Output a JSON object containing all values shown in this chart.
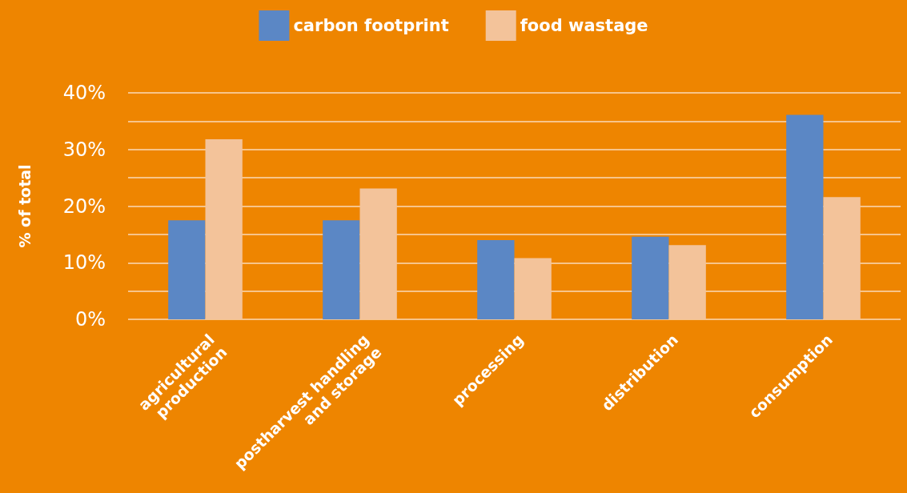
{
  "chart_data": {
    "type": "bar",
    "ylabel": "% of total",
    "categories": [
      "agricultural\nproduction",
      "postharvest handling\nand storage",
      "processing",
      "distribution",
      "consumption"
    ],
    "series": [
      {
        "name": "carbon footprint",
        "color": "#5b87c5",
        "values": [
          17.5,
          17.5,
          14.0,
          14.6,
          36.1
        ]
      },
      {
        "name": "food wastage",
        "color": "#f3c39a",
        "values": [
          31.8,
          23.1,
          10.8,
          13.1,
          21.6
        ]
      }
    ],
    "ylim": [
      0,
      40
    ],
    "yticks": [
      {
        "value": 0,
        "label": "0%"
      },
      {
        "value": 5,
        "label": null
      },
      {
        "value": 10,
        "label": "10%"
      },
      {
        "value": 15,
        "label": null
      },
      {
        "value": 20,
        "label": "20%"
      },
      {
        "value": 25,
        "label": null
      },
      {
        "value": 30,
        "label": "30%"
      },
      {
        "value": 35,
        "label": null
      },
      {
        "value": 40,
        "label": "40%"
      }
    ],
    "grid": "y",
    "legend": "top"
  }
}
